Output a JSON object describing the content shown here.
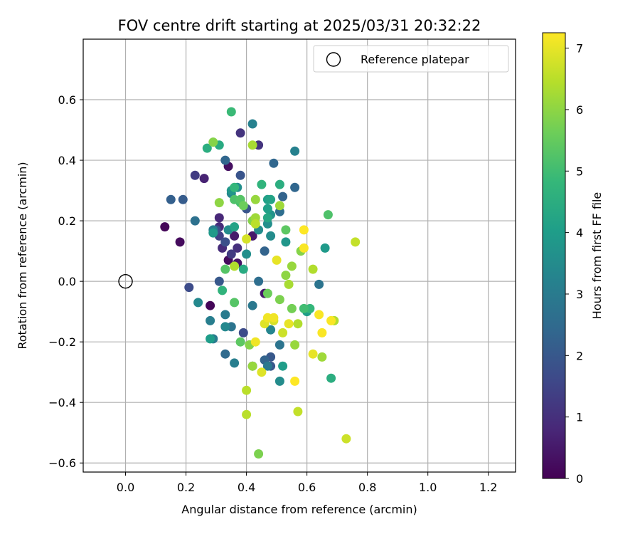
{
  "chart_data": {
    "type": "scatter",
    "title": "FOV centre drift starting at 2025/03/31 20:32:22",
    "xlabel": "Angular distance from reference (arcmin)",
    "ylabel": "Rotation from reference (arcmin)",
    "xlim": [
      -0.14,
      1.29
    ],
    "ylim": [
      -0.63,
      0.8
    ],
    "xticks": [
      0.0,
      0.2,
      0.4,
      0.6,
      0.8,
      1.0,
      1.2
    ],
    "xtick_labels": [
      "0.0",
      "0.2",
      "0.4",
      "0.6",
      "0.8",
      "1.0",
      "1.2"
    ],
    "yticks": [
      -0.6,
      -0.4,
      -0.2,
      0.0,
      0.2,
      0.4,
      0.6
    ],
    "ytick_labels": [
      "−0.6",
      "−0.4",
      "−0.2",
      "0.0",
      "0.2",
      "0.4",
      "0.6"
    ],
    "grid": true,
    "legend": {
      "position": "top-right",
      "entries": [
        "Reference platepar"
      ]
    },
    "reference_point": {
      "x": 0.0,
      "y": 0.0,
      "marker": "hollow-circle"
    },
    "colorbar": {
      "label": "Hours from first FF file",
      "colormap": "viridis",
      "range": [
        0,
        7.25
      ],
      "ticks": [
        0,
        1,
        2,
        3,
        4,
        5,
        6,
        7
      ],
      "tick_labels": [
        "0",
        "1",
        "2",
        "3",
        "4",
        "5",
        "6",
        "7"
      ]
    },
    "colormap_stops": [
      "#440154",
      "#482878",
      "#3e4989",
      "#31688e",
      "#26828e",
      "#1f9e89",
      "#35b779",
      "#6ece58",
      "#b5de2b",
      "#fde725"
    ],
    "points": [
      [
        0.13,
        0.18,
        0.1
      ],
      [
        0.18,
        0.13,
        0.2
      ],
      [
        0.28,
        -0.08,
        0.1
      ],
      [
        0.34,
        0.07,
        0.2
      ],
      [
        0.34,
        0.38,
        0.3
      ],
      [
        0.37,
        0.06,
        0.4
      ],
      [
        0.36,
        0.15,
        0.5
      ],
      [
        0.42,
        0.15,
        0.5
      ],
      [
        0.46,
        -0.04,
        0.5
      ],
      [
        0.26,
        0.34,
        0.7
      ],
      [
        0.31,
        0.21,
        0.8
      ],
      [
        0.31,
        0.18,
        0.9
      ],
      [
        0.32,
        0.11,
        0.9
      ],
      [
        0.37,
        0.11,
        1.0
      ],
      [
        0.38,
        0.49,
        1.1
      ],
      [
        0.44,
        0.45,
        1.1
      ],
      [
        0.23,
        0.35,
        1.3
      ],
      [
        0.35,
        0.09,
        1.3
      ],
      [
        0.31,
        0.15,
        1.4
      ],
      [
        0.21,
        -0.02,
        1.7
      ],
      [
        0.39,
        -0.17,
        1.7
      ],
      [
        0.33,
        0.13,
        1.8
      ],
      [
        0.3,
        0.17,
        1.8
      ],
      [
        0.4,
        0.24,
        1.9
      ],
      [
        0.38,
        0.35,
        1.9
      ],
      [
        0.31,
        0.0,
        2.0
      ],
      [
        0.42,
        -0.28,
        2.0
      ],
      [
        0.48,
        -0.25,
        2.0
      ],
      [
        0.48,
        -0.28,
        2.0
      ],
      [
        0.19,
        0.27,
        2.1
      ],
      [
        0.15,
        0.27,
        2.2
      ],
      [
        0.46,
        0.1,
        2.3
      ],
      [
        0.46,
        -0.26,
        2.3
      ],
      [
        0.52,
        0.28,
        2.3
      ],
      [
        0.33,
        0.4,
        2.4
      ],
      [
        0.56,
        0.31,
        2.4
      ],
      [
        0.49,
        0.39,
        2.4
      ],
      [
        0.33,
        -0.24,
        2.5
      ],
      [
        0.51,
        0.23,
        2.6
      ],
      [
        0.44,
        0.0,
        2.6
      ],
      [
        0.23,
        0.2,
        2.7
      ],
      [
        0.51,
        -0.21,
        2.8
      ],
      [
        0.64,
        -0.01,
        2.8
      ],
      [
        0.35,
        -0.15,
        2.8
      ],
      [
        0.42,
        -0.08,
        2.9
      ],
      [
        0.47,
        -0.28,
        2.9
      ],
      [
        0.29,
        -0.19,
        3.0
      ],
      [
        0.33,
        -0.11,
        3.0
      ],
      [
        0.36,
        -0.27,
        3.1
      ],
      [
        0.28,
        -0.13,
        3.1
      ],
      [
        0.29,
        0.17,
        3.1
      ],
      [
        0.56,
        0.43,
        3.2
      ],
      [
        0.42,
        0.52,
        3.2
      ],
      [
        0.48,
        -0.16,
        3.3
      ],
      [
        0.35,
        0.29,
        3.3
      ],
      [
        0.24,
        -0.07,
        3.4
      ],
      [
        0.33,
        -0.15,
        3.4
      ],
      [
        0.51,
        -0.33,
        3.5
      ],
      [
        0.44,
        0.17,
        3.5
      ],
      [
        0.48,
        0.15,
        3.5
      ],
      [
        0.34,
        0.17,
        3.5
      ],
      [
        0.37,
        0.31,
        3.6
      ],
      [
        0.4,
        0.09,
        3.6
      ],
      [
        0.47,
        0.19,
        3.6
      ],
      [
        0.48,
        0.22,
        3.7
      ],
      [
        0.35,
        0.3,
        3.8
      ],
      [
        0.53,
        0.13,
        3.8
      ],
      [
        0.29,
        0.16,
        3.9
      ],
      [
        0.66,
        0.11,
        3.9
      ],
      [
        0.6,
        -0.1,
        4.0
      ],
      [
        0.52,
        -0.28,
        4.0
      ],
      [
        0.28,
        -0.19,
        4.0
      ],
      [
        0.47,
        0.24,
        4.1
      ],
      [
        0.47,
        0.27,
        4.1
      ],
      [
        0.36,
        0.18,
        4.2
      ],
      [
        0.48,
        0.27,
        4.2
      ],
      [
        0.47,
        0.21,
        4.3
      ],
      [
        0.39,
        0.04,
        4.4
      ],
      [
        0.31,
        0.45,
        4.4
      ],
      [
        0.51,
        0.32,
        4.5
      ],
      [
        0.68,
        -0.32,
        4.5
      ],
      [
        0.27,
        0.44,
        4.5
      ],
      [
        0.45,
        0.32,
        4.7
      ],
      [
        0.32,
        -0.03,
        4.7
      ],
      [
        0.36,
        0.31,
        4.8
      ],
      [
        0.61,
        -0.09,
        4.8
      ],
      [
        0.35,
        0.56,
        4.9
      ],
      [
        0.59,
        -0.09,
        5.0
      ],
      [
        0.38,
        0.26,
        5.1
      ],
      [
        0.67,
        0.22,
        5.2
      ],
      [
        0.36,
        0.27,
        5.2
      ],
      [
        0.38,
        0.27,
        5.3
      ],
      [
        0.33,
        0.04,
        5.3
      ],
      [
        0.36,
        -0.07,
        5.3
      ],
      [
        0.38,
        -0.2,
        5.4
      ],
      [
        0.53,
        0.17,
        5.4
      ],
      [
        0.47,
        -0.04,
        5.6
      ],
      [
        0.39,
        0.25,
        5.6
      ],
      [
        0.55,
        -0.09,
        5.7
      ],
      [
        0.51,
        -0.06,
        5.8
      ],
      [
        0.44,
        -0.57,
        5.8
      ],
      [
        0.29,
        0.46,
        5.9
      ],
      [
        0.41,
        -0.21,
        5.9
      ],
      [
        0.42,
        0.2,
        5.9
      ],
      [
        0.58,
        0.1,
        5.9
      ],
      [
        0.31,
        0.26,
        6.0
      ],
      [
        0.53,
        0.02,
        6.0
      ],
      [
        0.42,
        -0.28,
        6.1
      ],
      [
        0.43,
        0.27,
        6.1
      ],
      [
        0.56,
        -0.21,
        6.1
      ],
      [
        0.55,
        0.05,
        6.1
      ],
      [
        0.65,
        -0.25,
        6.2
      ],
      [
        0.43,
        0.21,
        6.2
      ],
      [
        0.51,
        0.25,
        6.2
      ],
      [
        0.42,
        0.45,
        6.3
      ],
      [
        0.54,
        -0.01,
        6.3
      ],
      [
        0.36,
        0.05,
        6.4
      ],
      [
        0.62,
        0.04,
        6.4
      ],
      [
        0.69,
        -0.13,
        6.4
      ],
      [
        0.57,
        -0.14,
        6.4
      ],
      [
        0.4,
        -0.44,
        6.5
      ],
      [
        0.4,
        -0.36,
        6.5
      ],
      [
        0.43,
        0.19,
        6.5
      ],
      [
        0.76,
        0.13,
        6.6
      ],
      [
        0.57,
        -0.43,
        6.6
      ],
      [
        0.73,
        -0.52,
        6.7
      ],
      [
        0.52,
        -0.17,
        6.7
      ],
      [
        0.49,
        -0.13,
        6.8
      ],
      [
        0.4,
        0.14,
        6.8
      ],
      [
        0.45,
        -0.3,
        6.9
      ],
      [
        0.46,
        -0.14,
        6.9
      ],
      [
        0.54,
        -0.14,
        7.0
      ],
      [
        0.62,
        -0.24,
        7.0
      ],
      [
        0.5,
        0.07,
        7.0
      ],
      [
        0.49,
        -0.12,
        7.1
      ],
      [
        0.47,
        -0.12,
        7.1
      ],
      [
        0.43,
        -0.2,
        7.1
      ],
      [
        0.59,
        0.11,
        7.2
      ],
      [
        0.64,
        -0.11,
        7.2
      ],
      [
        0.65,
        -0.17,
        7.2
      ],
      [
        0.68,
        -0.13,
        7.2
      ],
      [
        0.56,
        -0.33,
        7.25
      ],
      [
        0.59,
        0.17,
        7.25
      ]
    ]
  }
}
